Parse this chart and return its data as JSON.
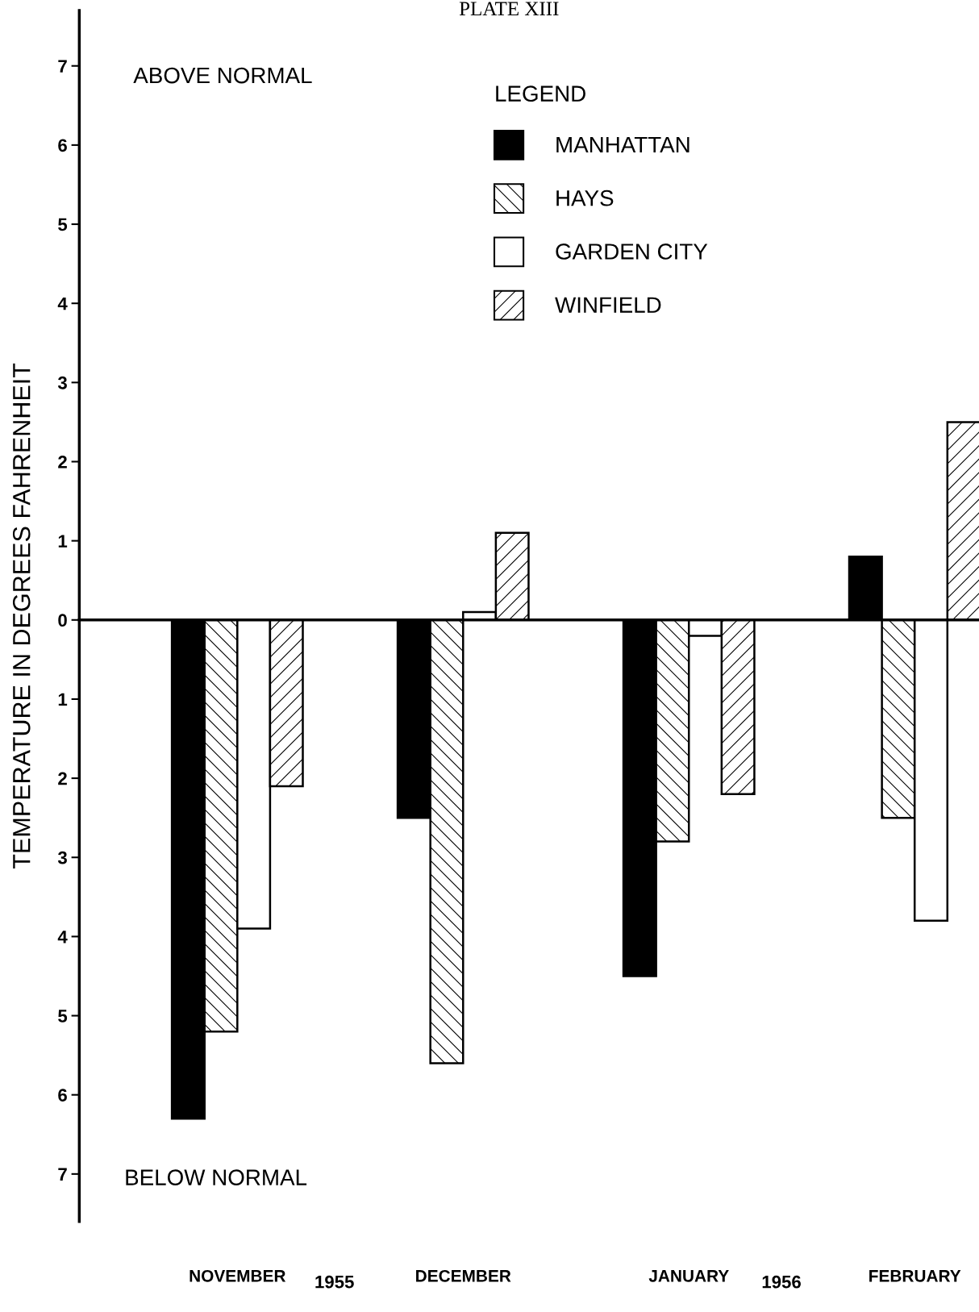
{
  "chart_data": {
    "type": "bar",
    "title": "PLATE XIII",
    "ylabel": "TEMPERATURE IN DEGREES FAHRENHEIT",
    "legend_title": "LEGEND",
    "categories": [
      "NOVEMBER",
      "DECEMBER",
      "JANUARY",
      "FEBRUARY"
    ],
    "series": [
      {
        "name": "MANHATTAN",
        "color": "#000000",
        "values": [
          -6.3,
          -2.5,
          -4.5,
          0.8
        ]
      },
      {
        "name": "HAYS",
        "color": "#000000",
        "values": [
          -5.2,
          -5.6,
          -2.8,
          -2.5
        ]
      },
      {
        "name": "GARDEN CITY",
        "color": "#ffffff",
        "values": [
          -3.9,
          0.1,
          -0.2,
          -3.8
        ]
      },
      {
        "name": "WINFIELD",
        "color": "#000000",
        "values": [
          -2.1,
          1.1,
          -2.2,
          2.5
        ]
      }
    ],
    "ylim": [
      -7.6,
      7.7
    ],
    "yticks": [
      {
        "value": -7,
        "label": "7"
      },
      {
        "value": -6,
        "label": "6"
      },
      {
        "value": -5,
        "label": "5"
      },
      {
        "value": -4,
        "label": "4"
      },
      {
        "value": -3,
        "label": "3"
      },
      {
        "value": -2,
        "label": "2"
      },
      {
        "value": -1,
        "label": "1"
      },
      0,
      1,
      2,
      3,
      4,
      5,
      6,
      7
    ],
    "annotations": [
      "ABOVE NORMAL",
      "BELOW NORMAL",
      "1955",
      "1956"
    ],
    "legend": "top"
  }
}
